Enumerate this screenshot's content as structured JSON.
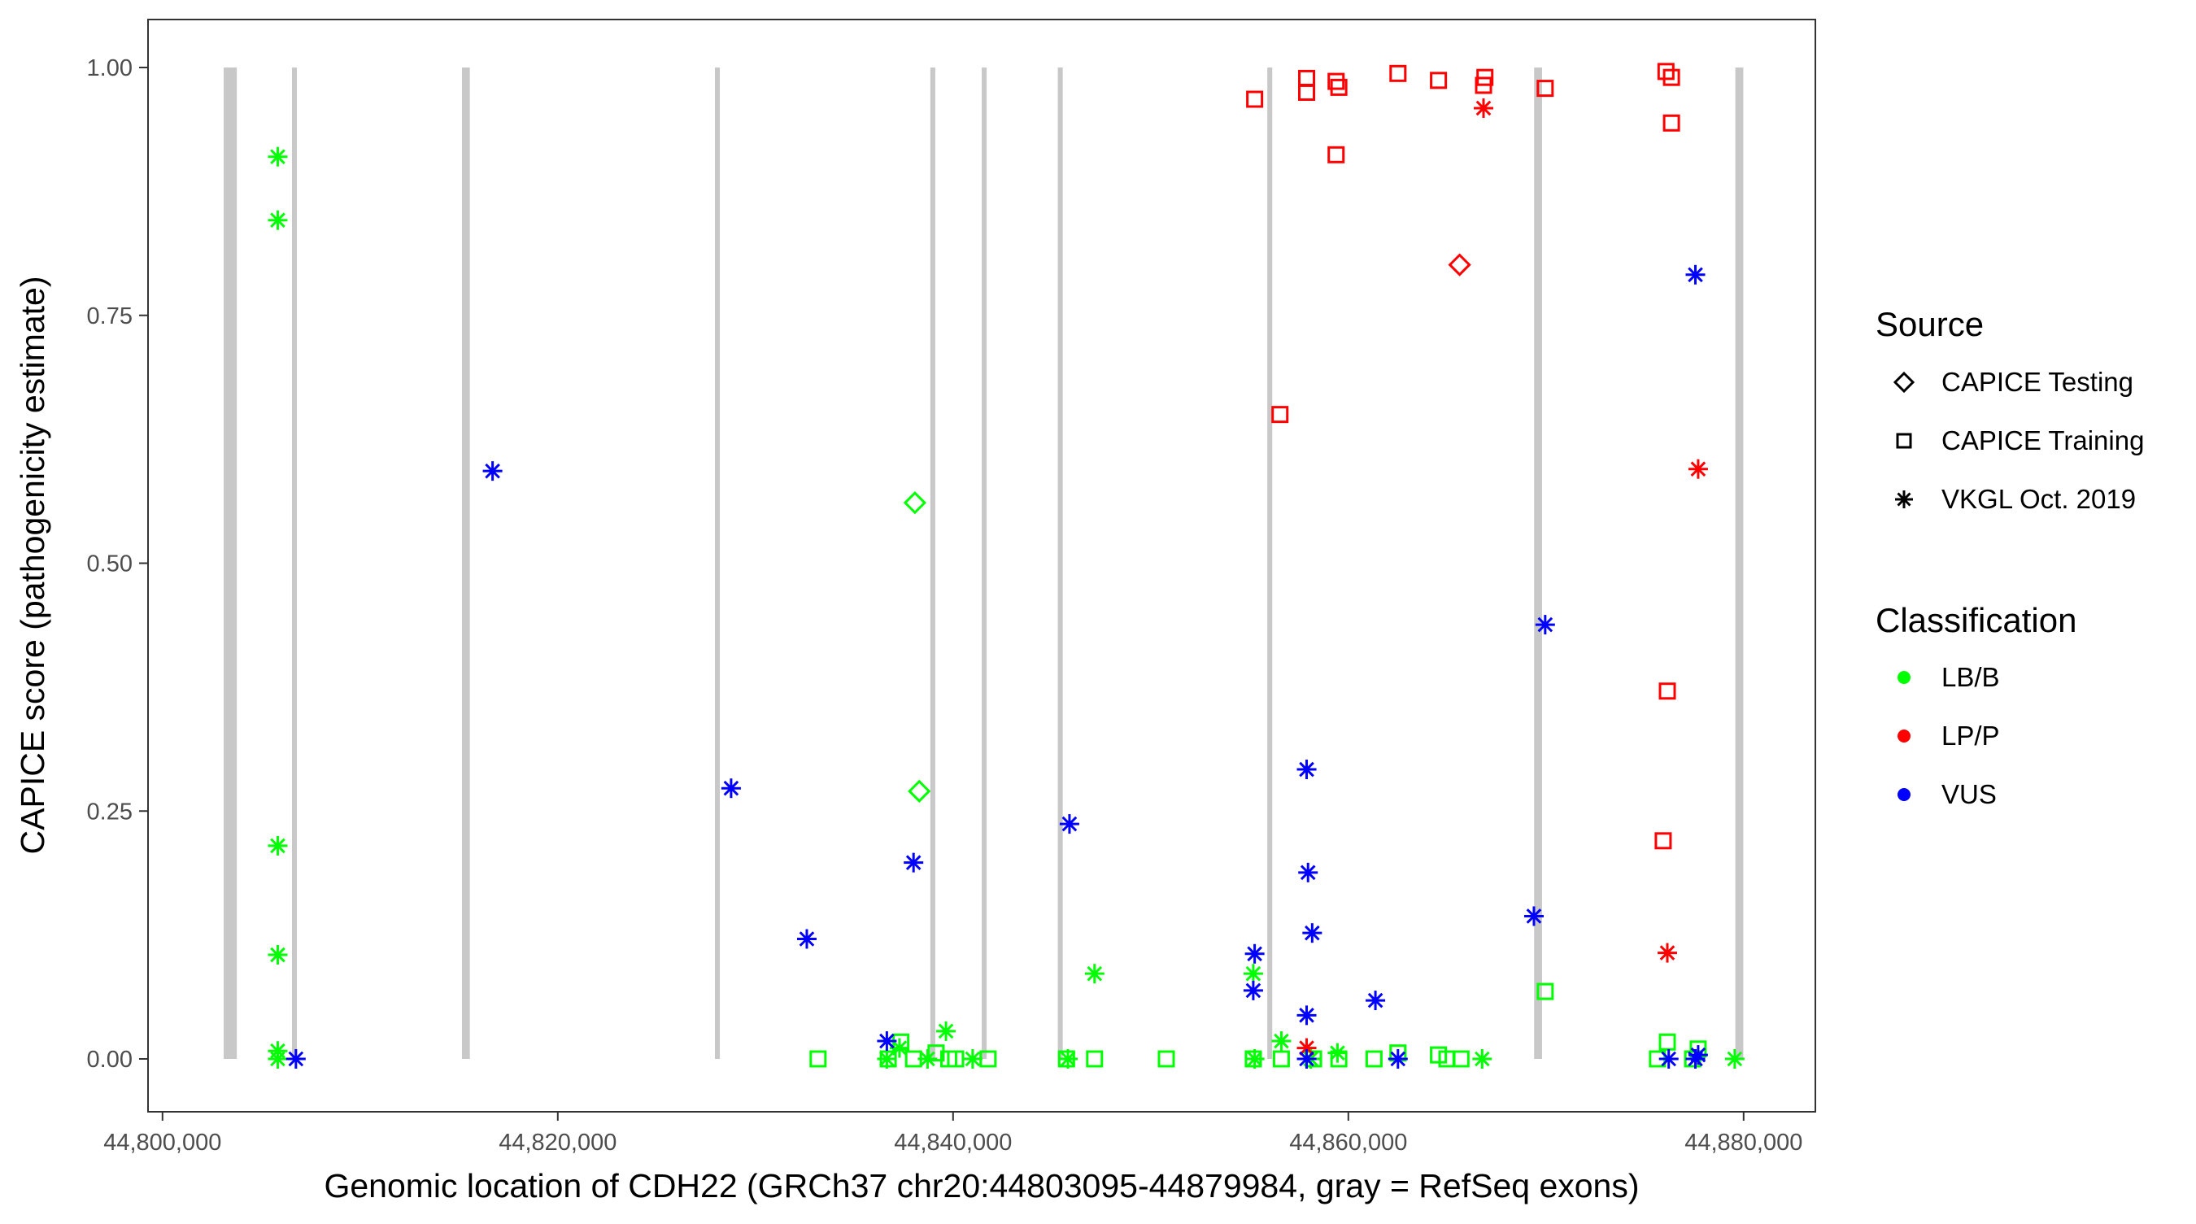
{
  "chart_data": {
    "type": "scatter",
    "xlabel": "Genomic location of CDH22 (GRCh37 chr20:44803095-44879984, gray = RefSeq exons)",
    "ylabel": "CAPICE score (pathogenicity estimate)",
    "xlim": [
      44799300,
      44883700
    ],
    "ylim": [
      -0.045,
      1.05
    ],
    "x_ticks": [
      44800000,
      44820000,
      44840000,
      44860000,
      44880000
    ],
    "x_tick_labels": [
      "44,800,000",
      "44,820,000",
      "44,840,000",
      "44,860,000",
      "44,880,000"
    ],
    "y_ticks": [
      0,
      0.25,
      0.5,
      0.75,
      1.0
    ],
    "y_tick_labels": [
      "0.00",
      "0.25",
      "0.50",
      "0.75",
      "1.00"
    ],
    "grid": false,
    "legend_placement": "right",
    "exons": [
      [
        44803095,
        44803760
      ],
      [
        44806550,
        44806800
      ],
      [
        44815150,
        44815550
      ],
      [
        44827950,
        44828200
      ],
      [
        44838850,
        44839100
      ],
      [
        44841450,
        44841700
      ],
      [
        44845300,
        44845550
      ],
      [
        44855900,
        44856150
      ],
      [
        44869400,
        44869800
      ],
      [
        44879580,
        44879984
      ]
    ],
    "exon_color": "#C8C8C8",
    "legend": {
      "source_title": "Source",
      "sources": [
        {
          "label": "CAPICE Testing",
          "shape": "diamond"
        },
        {
          "label": "CAPICE Training",
          "shape": "square"
        },
        {
          "label": "VKGL Oct. 2019",
          "shape": "asterisk"
        }
      ],
      "class_title": "Classification",
      "classes": [
        {
          "label": "LB/B",
          "color": "#00FF00"
        },
        {
          "label": "LP/P",
          "color": "#FF0000"
        },
        {
          "label": "VUS",
          "color": "#0000FF"
        }
      ]
    },
    "series": [
      {
        "source": "VKGL Oct. 2019",
        "class": "LB/B",
        "points": [
          [
            44805830,
            0.91
          ],
          [
            44805830,
            0.846
          ],
          [
            44805830,
            0.215
          ],
          [
            44805830,
            0.105
          ],
          [
            44805830,
            0.008
          ],
          [
            44805830,
            0
          ],
          [
            44839640,
            0.028
          ],
          [
            44847160,
            0.086
          ],
          [
            44855190,
            0.086
          ],
          [
            44856610,
            0.018
          ],
          [
            44866770,
            0
          ],
          [
            44879550,
            0
          ],
          [
            44845810,
            0
          ],
          [
            44840990,
            0
          ],
          [
            44837290,
            0.011
          ],
          [
            44836650,
            0
          ],
          [
            44838710,
            0
          ],
          [
            44855260,
            0
          ],
          [
            44858100,
            0
          ],
          [
            44859450,
            0.006
          ]
        ]
      },
      {
        "source": "CAPICE Training",
        "class": "LB/B",
        "points": [
          [
            44833170,
            0
          ],
          [
            44836720,
            0
          ],
          [
            44837360,
            0.017
          ],
          [
            44838000,
            0
          ],
          [
            44839140,
            0.006
          ],
          [
            44839780,
            0
          ],
          [
            44840130,
            0
          ],
          [
            44841770,
            0
          ],
          [
            44845740,
            0
          ],
          [
            44847160,
            0
          ],
          [
            44850790,
            0
          ],
          [
            44855190,
            0
          ],
          [
            44856610,
            0
          ],
          [
            44858240,
            0
          ],
          [
            44859520,
            0
          ],
          [
            44861300,
            0
          ],
          [
            44862510,
            0.006
          ],
          [
            44864560,
            0.004
          ],
          [
            44864990,
            0
          ],
          [
            44865700,
            0
          ],
          [
            44869960,
            0.068
          ],
          [
            44875640,
            0
          ],
          [
            44876140,
            0.017
          ],
          [
            44877700,
            0.01
          ],
          [
            44877420,
            0
          ]
        ]
      },
      {
        "source": "CAPICE Testing",
        "class": "LB/B",
        "points": [
          [
            44838070,
            0.561
          ],
          [
            44838290,
            0.27
          ]
        ]
      },
      {
        "source": "CAPICE Training",
        "class": "LP/P",
        "points": [
          [
            44855260,
            0.968
          ],
          [
            44857890,
            0.989
          ],
          [
            44857890,
            0.975
          ],
          [
            44859380,
            0.986
          ],
          [
            44859520,
            0.98
          ],
          [
            44862510,
            0.994
          ],
          [
            44864560,
            0.987
          ],
          [
            44866910,
            0.99
          ],
          [
            44866840,
            0.982
          ],
          [
            44869960,
            0.979
          ],
          [
            44859380,
            0.912
          ],
          [
            44856540,
            0.65
          ],
          [
            44876070,
            0.996
          ],
          [
            44876350,
            0.99
          ],
          [
            44876350,
            0.944
          ],
          [
            44876140,
            0.371
          ],
          [
            44875930,
            0.22
          ]
        ]
      },
      {
        "source": "VKGL Oct. 2019",
        "class": "LP/P",
        "points": [
          [
            44866840,
            0.959
          ],
          [
            44877700,
            0.595
          ],
          [
            44876140,
            0.107
          ],
          [
            44857890,
            0.011
          ]
        ]
      },
      {
        "source": "CAPICE Testing",
        "class": "LP/P",
        "points": [
          [
            44865630,
            0.801
          ]
        ]
      },
      {
        "source": "VKGL Oct. 2019",
        "class": "VUS",
        "points": [
          [
            44806750,
            0
          ],
          [
            44816700,
            0.593
          ],
          [
            44828770,
            0.273
          ],
          [
            44832600,
            0.121
          ],
          [
            44838000,
            0.198
          ],
          [
            44836650,
            0.018
          ],
          [
            44845890,
            0.237
          ],
          [
            44855260,
            0.106
          ],
          [
            44855190,
            0.069
          ],
          [
            44857890,
            0.292
          ],
          [
            44857960,
            0.188
          ],
          [
            44858170,
            0.127
          ],
          [
            44857890,
            0.044
          ],
          [
            44857890,
            0
          ],
          [
            44861370,
            0.059
          ],
          [
            44862510,
            0
          ],
          [
            44869390,
            0.144
          ],
          [
            44869960,
            0.438
          ],
          [
            44877560,
            0.791
          ],
          [
            44876210,
            0
          ],
          [
            44877560,
            0
          ],
          [
            44877700,
            0.004
          ]
        ]
      }
    ]
  }
}
